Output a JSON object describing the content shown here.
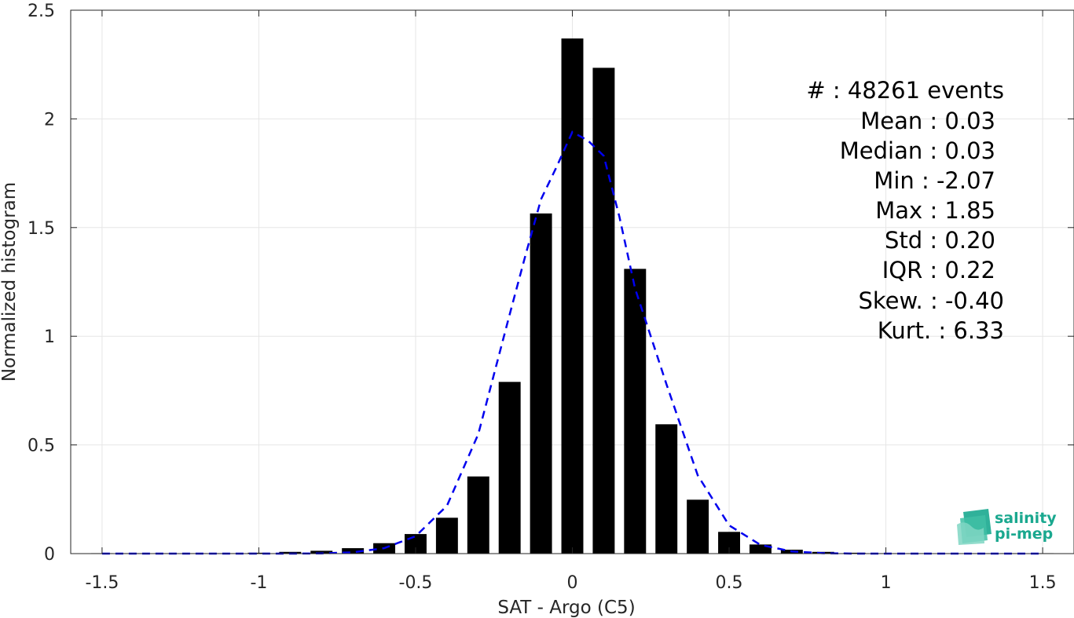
{
  "chart_data": {
    "type": "bar",
    "xlabel": "SAT - Argo (C5)",
    "ylabel": "Normalized histogram",
    "xlim": [
      -1.6,
      1.6
    ],
    "ylim": [
      0,
      2.5
    ],
    "xticks": [
      -1.5,
      -1,
      -0.5,
      0,
      0.5,
      1,
      1.5
    ],
    "xtick_labels": [
      "-1.5",
      "-1",
      "-0.5",
      "0",
      "0.5",
      "1",
      "1.5"
    ],
    "yticks": [
      0,
      0.5,
      1,
      1.5,
      2,
      2.5
    ],
    "ytick_labels": [
      "0",
      "0.5",
      "1",
      "1.5",
      "2",
      "2.5"
    ],
    "grid": true,
    "bar_width": 0.07,
    "series": [
      {
        "type": "bar",
        "color": "#000000",
        "x": [
          -1.5,
          -1.4,
          -1.3,
          -1.2,
          -1.1,
          -1.0,
          -0.9,
          -0.8,
          -0.7,
          -0.6,
          -0.5,
          -0.4,
          -0.3,
          -0.2,
          -0.1,
          0.0,
          0.1,
          0.2,
          0.3,
          0.4,
          0.5,
          0.6,
          0.7,
          0.8,
          0.9,
          1.0,
          1.1,
          1.2,
          1.3,
          1.4,
          1.5
        ],
        "values": [
          0.002,
          0.002,
          0.002,
          0.002,
          0.002,
          0.004,
          0.008,
          0.013,
          0.025,
          0.048,
          0.09,
          0.165,
          0.355,
          0.79,
          1.565,
          2.37,
          2.235,
          1.31,
          0.595,
          0.248,
          0.1,
          0.042,
          0.018,
          0.008,
          0.004,
          0.002,
          0.002,
          0.002,
          0.002,
          0.002,
          0.002
        ]
      },
      {
        "type": "line",
        "style": "dashed",
        "color": "#0000ee",
        "x": [
          -1.5,
          -1.4,
          -1.3,
          -1.2,
          -1.1,
          -1.0,
          -0.9,
          -0.8,
          -0.7,
          -0.6,
          -0.5,
          -0.4,
          -0.3,
          -0.2,
          -0.15,
          -0.1,
          -0.05,
          0.0,
          0.05,
          0.1,
          0.15,
          0.2,
          0.3,
          0.4,
          0.5,
          0.6,
          0.7,
          0.8,
          0.9,
          1.0,
          1.1,
          1.2,
          1.3,
          1.4,
          1.5
        ],
        "values": [
          0.0,
          0.0,
          0.0,
          0.0,
          0.0,
          0.0,
          0.0,
          0.001,
          0.006,
          0.025,
          0.08,
          0.22,
          0.55,
          1.1,
          1.37,
          1.63,
          1.78,
          1.94,
          1.9,
          1.83,
          1.55,
          1.22,
          0.78,
          0.36,
          0.13,
          0.04,
          0.01,
          0.002,
          0.0,
          0.0,
          0.0,
          0.0,
          0.0,
          0.0,
          0.0
        ]
      }
    ],
    "annotations": [
      "#  : 48261 events",
      "Mean : 0.03",
      "Median : 0.03",
      "Min : -2.07",
      "Max : 1.85",
      "Std : 0.20",
      "IQR : 0.22",
      "Skew. : -0.40",
      "Kurt. : 6.33"
    ]
  },
  "logo": {
    "line1": "salinity",
    "line2": "pi-mep",
    "color": "#1aa88f"
  }
}
